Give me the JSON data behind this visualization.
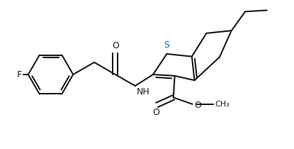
{
  "bg_color": "#ffffff",
  "line_color": "#1a1a1a",
  "S_color": "#2060a0",
  "N_color": "#1a1a1a",
  "O_color": "#1a1a1a",
  "F_color": "#1a1a1a",
  "lw": 1.5,
  "fig_width": 4.15,
  "fig_height": 2.1,
  "xlim": [
    0,
    10.5
  ],
  "ylim": [
    -2.8,
    2.8
  ]
}
